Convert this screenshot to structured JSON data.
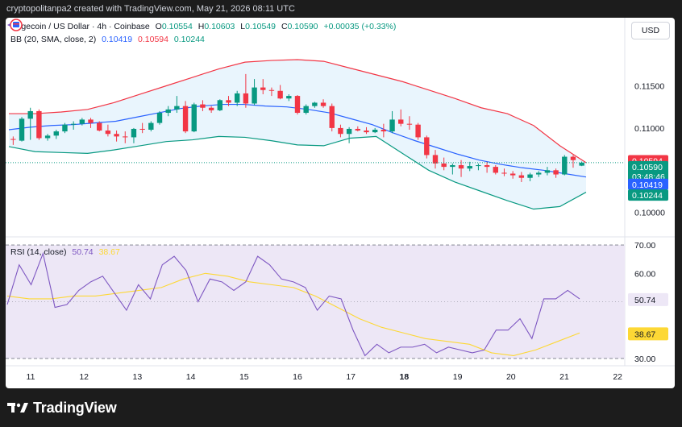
{
  "header": {
    "caption": "cryptopolitanpa2 created with TradingView.com, May 21, 2026 08:11 UTC"
  },
  "legend": {
    "symbol": "Dogecoin / US Dollar · 4h · Coinbase",
    "o_label": "O",
    "o_value": "0.10554",
    "h_label": "H",
    "h_value": "0.10603",
    "l_label": "L",
    "l_value": "0.10549",
    "c_label": "C",
    "c_value": "0.10590",
    "change": "+0.00035 (+0.33%)",
    "bb_label": "BB (20, SMA, close, 2)",
    "bb_mid": "0.10419",
    "bb_upper": "0.10594",
    "bb_lower": "0.10244",
    "rsi_label": "RSI (14, close)",
    "rsi_value": "50.74",
    "rsi_ma": "38.67"
  },
  "currency_button": "USD",
  "price_axis": [
    "0.11500",
    "0.11000",
    "0.10000"
  ],
  "price_tags": {
    "upper": "0.10594",
    "last": "0.10590",
    "countdown": "03:48:46",
    "mid": "0.10419",
    "lower": "0.10244"
  },
  "rsi_axis": [
    "70.00",
    "60.00",
    "30.00"
  ],
  "rsi_tags": {
    "rsi": "50.74",
    "ma": "38.67"
  },
  "time_axis": [
    "11",
    "12",
    "13",
    "14",
    "15",
    "16",
    "17",
    "18",
    "19",
    "20",
    "21",
    "22"
  ],
  "footer_brand": "TradingView",
  "colors": {
    "up": "#089981",
    "down": "#f23645",
    "bb_mid": "#2962ff",
    "bb_upper": "#f23645",
    "bb_lower": "#089981",
    "bb_fill": "#e3f2fd",
    "rsi": "#7e57c2",
    "rsi_ma": "#fdd835",
    "rsi_band": "#ede7f6"
  },
  "chart_data": [
    {
      "type": "candlestick",
      "title": "Dogecoin / US Dollar · 4h · Coinbase",
      "ylim": [
        0.0973,
        0.1202
      ],
      "x_ticks": [
        "11",
        "12",
        "13",
        "14",
        "15",
        "16",
        "17",
        "18",
        "19",
        "20",
        "21",
        "22"
      ],
      "y_ticks": [
        0.115,
        0.11,
        0.1
      ],
      "candles": [
        [
          0.1087,
          0.109,
          0.108,
          0.1086
        ],
        [
          0.1085,
          0.1113,
          0.1084,
          0.1111
        ],
        [
          0.1111,
          0.1124,
          0.1086,
          0.112
        ],
        [
          0.112,
          0.1122,
          0.1086,
          0.1088
        ],
        [
          0.1088,
          0.1093,
          0.1085,
          0.1091
        ],
        [
          0.1091,
          0.1098,
          0.1087,
          0.1096
        ],
        [
          0.1096,
          0.1106,
          0.1094,
          0.1104
        ],
        [
          0.1104,
          0.1108,
          0.1098,
          0.1105
        ],
        [
          0.1105,
          0.1112,
          0.1103,
          0.111
        ],
        [
          0.111,
          0.1112,
          0.11,
          0.1106
        ],
        [
          0.1106,
          0.1108,
          0.1096,
          0.1097
        ],
        [
          0.1097,
          0.1104,
          0.109,
          0.1093
        ],
        [
          0.1093,
          0.1097,
          0.1084,
          0.109
        ],
        [
          0.109,
          0.1096,
          0.1082,
          0.1089
        ],
        [
          0.1089,
          0.11,
          0.1082,
          0.1099
        ],
        [
          0.1099,
          0.1106,
          0.1094,
          0.1098
        ],
        [
          0.1098,
          0.1108,
          0.1096,
          0.1106
        ],
        [
          0.1106,
          0.112,
          0.1104,
          0.1118
        ],
        [
          0.1118,
          0.1126,
          0.1114,
          0.1122
        ],
        [
          0.1122,
          0.1138,
          0.1118,
          0.1126
        ],
        [
          0.1126,
          0.1132,
          0.1094,
          0.1096
        ],
        [
          0.1096,
          0.113,
          0.1095,
          0.1128
        ],
        [
          0.1128,
          0.1133,
          0.112,
          0.1124
        ],
        [
          0.1124,
          0.1126,
          0.1118,
          0.1121
        ],
        [
          0.1121,
          0.1134,
          0.112,
          0.1133
        ],
        [
          0.1133,
          0.1138,
          0.1126,
          0.113
        ],
        [
          0.113,
          0.1144,
          0.1126,
          0.1141
        ],
        [
          0.1141,
          0.1164,
          0.1124,
          0.1129
        ],
        [
          0.1129,
          0.1158,
          0.1127,
          0.1148
        ],
        [
          0.1148,
          0.1158,
          0.114,
          0.1145
        ],
        [
          0.1145,
          0.1148,
          0.1138,
          0.1144
        ],
        [
          0.1144,
          0.1151,
          0.1134,
          0.1135
        ],
        [
          0.1135,
          0.114,
          0.1132,
          0.1138
        ],
        [
          0.1138,
          0.1139,
          0.1116,
          0.1118
        ],
        [
          0.1118,
          0.1128,
          0.1116,
          0.1126
        ],
        [
          0.1126,
          0.1131,
          0.1124,
          0.113
        ],
        [
          0.113,
          0.1134,
          0.1124,
          0.1126
        ],
        [
          0.1126,
          0.1129,
          0.1096,
          0.11
        ],
        [
          0.11,
          0.1104,
          0.1089,
          0.1093
        ],
        [
          0.1093,
          0.1101,
          0.1082,
          0.1099
        ],
        [
          0.1099,
          0.1102,
          0.1096,
          0.1097
        ],
        [
          0.1097,
          0.1101,
          0.1093,
          0.1095
        ],
        [
          0.1095,
          0.11,
          0.1094,
          0.1098
        ],
        [
          0.1098,
          0.1105,
          0.1089,
          0.1096
        ],
        [
          0.1096,
          0.112,
          0.1094,
          0.111
        ],
        [
          0.111,
          0.1122,
          0.1102,
          0.1105
        ],
        [
          0.1105,
          0.1114,
          0.1098,
          0.1104
        ],
        [
          0.1104,
          0.1106,
          0.1086,
          0.1089
        ],
        [
          0.1089,
          0.1091,
          0.1064,
          0.1068
        ],
        [
          0.1068,
          0.1074,
          0.1052,
          0.1058
        ],
        [
          0.1058,
          0.1065,
          0.105,
          0.1054
        ],
        [
          0.1054,
          0.1058,
          0.1045,
          0.1056
        ],
        [
          0.1056,
          0.1062,
          0.1042,
          0.1052
        ],
        [
          0.1052,
          0.106,
          0.1049,
          0.1055
        ],
        [
          0.1055,
          0.1058,
          0.105,
          0.1056
        ],
        [
          0.1056,
          0.106,
          0.1047,
          0.1054
        ],
        [
          0.1054,
          0.1056,
          0.1045,
          0.1047
        ],
        [
          0.1047,
          0.1052,
          0.1043,
          0.1046
        ],
        [
          0.1046,
          0.1049,
          0.104,
          0.1044
        ],
        [
          0.1044,
          0.1048,
          0.1036,
          0.1041
        ],
        [
          0.1041,
          0.1047,
          0.1037,
          0.1045
        ],
        [
          0.1045,
          0.1049,
          0.1042,
          0.1047
        ],
        [
          0.1047,
          0.1054,
          0.1044,
          0.105
        ],
        [
          0.105,
          0.1052,
          0.1041,
          0.1045
        ],
        [
          0.1045,
          0.1068,
          0.1044,
          0.1066
        ],
        [
          0.1066,
          0.1068,
          0.1053,
          0.1062
        ],
        [
          0.10554,
          0.10603,
          0.10549,
          0.1059
        ]
      ],
      "bb_middle": [
        0.1098,
        0.1101,
        0.1103,
        0.1104,
        0.1106,
        0.1108,
        0.1113,
        0.1118,
        0.1123,
        0.1126,
        0.1128,
        0.1128,
        0.1126,
        0.1125,
        0.1122,
        0.1118,
        0.1111,
        0.1104,
        0.1094,
        0.1085,
        0.1077,
        0.1069,
        0.1062,
        0.1057,
        0.1053,
        0.105,
        0.1046,
        0.1042
      ],
      "bb_upper": [
        0.1117,
        0.1117,
        0.1119,
        0.1122,
        0.113,
        0.114,
        0.115,
        0.116,
        0.117,
        0.1178,
        0.118,
        0.1181,
        0.1179,
        0.1171,
        0.1163,
        0.1155,
        0.1145,
        0.1135,
        0.1124,
        0.1117,
        0.1103,
        0.1079,
        0.1059
      ],
      "bb_lower": [
        0.1078,
        0.1072,
        0.1071,
        0.107,
        0.1074,
        0.1079,
        0.1084,
        0.1086,
        0.109,
        0.1089,
        0.1085,
        0.108,
        0.1079,
        0.1088,
        0.109,
        0.107,
        0.105,
        0.1036,
        0.1025,
        0.1014,
        0.1004,
        0.1007,
        0.1024
      ],
      "bb_last": {
        "middle": 0.10419,
        "upper": 0.10594,
        "lower": 0.10244
      }
    },
    {
      "type": "line",
      "title": "RSI (14, close)",
      "ylim": [
        28,
        72
      ],
      "y_ticks": [
        70,
        60,
        30
      ],
      "band": [
        30,
        70
      ],
      "series": [
        {
          "name": "RSI",
          "values": [
            49,
            63,
            56,
            67,
            48,
            49,
            54,
            57,
            59,
            53,
            47,
            56,
            51,
            63,
            66,
            61,
            50,
            58,
            57,
            54,
            57,
            66,
            63,
            58,
            57,
            55,
            47,
            52,
            51,
            40,
            31,
            35,
            32,
            34,
            34,
            35,
            32,
            34,
            33,
            32,
            33,
            40,
            40,
            44,
            37,
            51,
            51,
            54,
            51
          ]
        },
        {
          "name": "MA",
          "values": [
            52,
            51,
            51,
            52,
            52,
            53,
            54,
            55,
            58,
            60,
            59,
            57,
            56,
            55,
            52,
            48,
            44,
            41,
            39,
            37,
            36,
            35,
            32,
            31,
            33,
            36,
            39
          ]
        }
      ],
      "last": {
        "rsi": 50.74,
        "ma": 38.67
      }
    }
  ]
}
